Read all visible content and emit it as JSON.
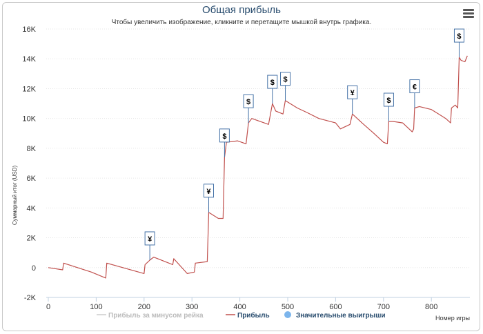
{
  "chart_data": {
    "type": "line",
    "title": "Общая прибыль",
    "subtitle": "Чтобы увеличить изображение, кликните и перетащите мышкой внутрь графика.",
    "ylabel": "Суммарный итог (USD)",
    "xlabel": "Номер игры",
    "ylim": [
      -2000,
      16000
    ],
    "yticks": [
      -2000,
      0,
      2000,
      4000,
      6000,
      8000,
      10000,
      12000,
      14000,
      16000
    ],
    "ytick_labels": [
      "-2K",
      "0",
      "2K",
      "4K",
      "6K",
      "8K",
      "10K",
      "12K",
      "14K",
      "16K"
    ],
    "xlim": [
      -5,
      880
    ],
    "xticks": [
      0,
      100,
      200,
      300,
      400,
      500,
      600,
      700,
      800
    ],
    "grid": "horizontal",
    "legend_position": "bottom",
    "legend": [
      {
        "name": "Прибыль за минусом рейка",
        "color": "#cccccc",
        "kind": "line"
      },
      {
        "name": "Прибыль",
        "color": "#c0504d",
        "kind": "line"
      },
      {
        "name": "Значительные выигрыши",
        "color": "#7cb5ec",
        "kind": "marker"
      }
    ],
    "series": [
      {
        "name": "Прибыль",
        "color": "#c0504d",
        "points": [
          [
            0,
            0
          ],
          [
            30,
            -150
          ],
          [
            32,
            300
          ],
          [
            90,
            -300
          ],
          [
            120,
            -700
          ],
          [
            122,
            300
          ],
          [
            200,
            -400
          ],
          [
            202,
            200
          ],
          [
            212,
            500
          ],
          [
            220,
            700
          ],
          [
            260,
            200
          ],
          [
            262,
            600
          ],
          [
            290,
            -400
          ],
          [
            305,
            -300
          ],
          [
            307,
            300
          ],
          [
            332,
            400
          ],
          [
            335,
            3700
          ],
          [
            355,
            3300
          ],
          [
            365,
            3300
          ],
          [
            368,
            7400
          ],
          [
            372,
            8400
          ],
          [
            395,
            8500
          ],
          [
            413,
            8300
          ],
          [
            418,
            9700
          ],
          [
            425,
            10000
          ],
          [
            460,
            9600
          ],
          [
            468,
            11000
          ],
          [
            475,
            10500
          ],
          [
            490,
            10300
          ],
          [
            495,
            11200
          ],
          [
            520,
            10700
          ],
          [
            540,
            10400
          ],
          [
            565,
            10000
          ],
          [
            600,
            9700
          ],
          [
            610,
            9300
          ],
          [
            630,
            9600
          ],
          [
            635,
            10300
          ],
          [
            655,
            9700
          ],
          [
            680,
            9000
          ],
          [
            700,
            8400
          ],
          [
            708,
            8300
          ],
          [
            711,
            9800
          ],
          [
            720,
            9800
          ],
          [
            740,
            9700
          ],
          [
            760,
            9100
          ],
          [
            763,
            9300
          ],
          [
            765,
            10700
          ],
          [
            775,
            10800
          ],
          [
            800,
            10600
          ],
          [
            830,
            10000
          ],
          [
            840,
            9700
          ],
          [
            842,
            10700
          ],
          [
            850,
            10900
          ],
          [
            855,
            10700
          ],
          [
            858,
            14100
          ],
          [
            862,
            13900
          ],
          [
            870,
            13800
          ],
          [
            875,
            14200
          ]
        ]
      }
    ],
    "big_wins": [
      {
        "x": 212,
        "y": 500,
        "currency": "¥"
      },
      {
        "x": 335,
        "y": 3700,
        "currency": "¥"
      },
      {
        "x": 368,
        "y": 7400,
        "currency": "$"
      },
      {
        "x": 418,
        "y": 9700,
        "currency": "$"
      },
      {
        "x": 468,
        "y": 11000,
        "currency": "$"
      },
      {
        "x": 495,
        "y": 11200,
        "currency": "$"
      },
      {
        "x": 635,
        "y": 10300,
        "currency": "¥"
      },
      {
        "x": 711,
        "y": 9800,
        "currency": "$"
      },
      {
        "x": 765,
        "y": 10700,
        "currency": "€"
      },
      {
        "x": 858,
        "y": 14100,
        "currency": "$"
      }
    ]
  }
}
